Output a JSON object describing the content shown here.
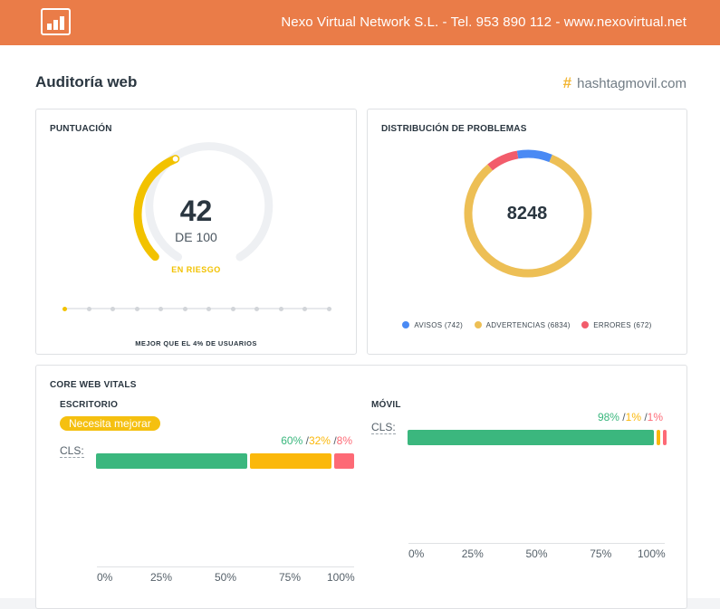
{
  "header": {
    "company": "Nexo Virtual Network S.L. - Tel. 953 890 112 - www.nexovirtual.net",
    "logo_icon": "bar-chart-icon",
    "background": "#ea7c48"
  },
  "page": {
    "title": "Auditoría web",
    "brand_symbol": "#",
    "brand": "hashtagmovil.com"
  },
  "score_card": {
    "title": "PUNTUACIÓN",
    "score": "42",
    "out_of": "DE 100",
    "status": "EN RIESGO",
    "score_value": 42,
    "max_value": 100,
    "status_color": "#f2c200",
    "rank_caption": "MEJOR QUE EL 4% DE USUARIOS",
    "rank_percent": 4
  },
  "issues_card": {
    "title": "DISTRIBUCIÓN DE PROBLEMAS",
    "total": "8248",
    "legend": [
      {
        "label": "AVISOS (742)",
        "value": 742,
        "color": "#4a8af4"
      },
      {
        "label": "ADVERTENCIAS (6834)",
        "value": 6834,
        "color": "#edbf55"
      },
      {
        "label": "ERRORES (672)",
        "value": 672,
        "color": "#f25c6b"
      }
    ]
  },
  "vitals_card": {
    "title": "CORE WEB VITALS",
    "desktop": {
      "title": "ESCRITORIO",
      "badge": "Necesita mejorar",
      "metric": "CLS:",
      "good": "60%",
      "sep1": " /",
      "needs": "32%",
      "sep2": " /",
      "poor": "8%",
      "values": [
        60,
        32,
        8
      ]
    },
    "mobile": {
      "title": "MÓVIL",
      "metric": "CLS:",
      "good": "98%",
      "sep1": " /",
      "needs": "1%",
      "sep2": " /",
      "poor": "1%",
      "values": [
        98,
        1,
        1
      ]
    },
    "colors": {
      "good": "#3bb77e",
      "needs": "#fbb80b",
      "poor": "#fd6a76"
    },
    "ticks": [
      "0%",
      "25%",
      "50%",
      "75%",
      "100%"
    ]
  }
}
